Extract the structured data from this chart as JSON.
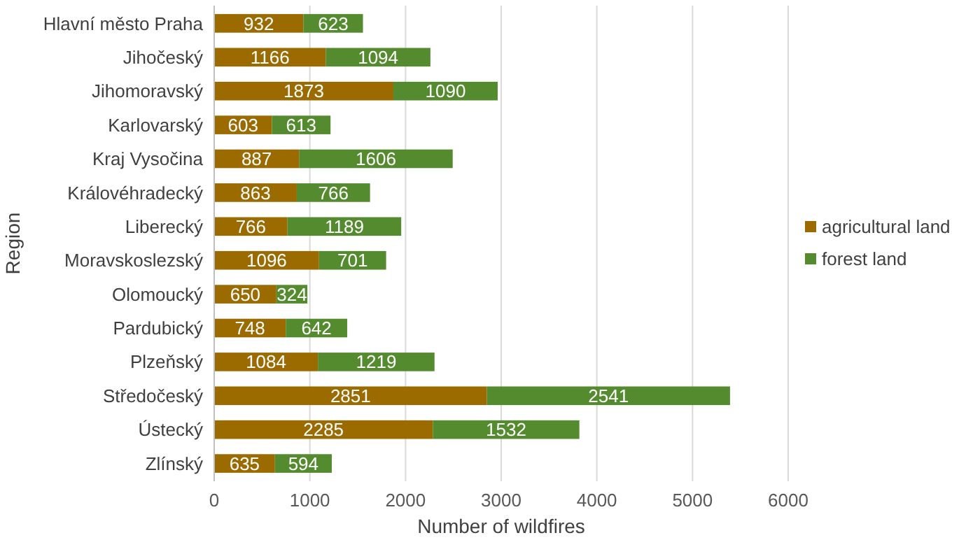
{
  "chart_data": {
    "type": "bar",
    "orientation": "horizontal",
    "stacked": true,
    "xlabel": "Number of wildfires",
    "ylabel": "Region",
    "categories": [
      "Hlavní město Praha",
      "Jihočeský",
      "Jihomoravský",
      "Karlovarský",
      "Kraj Vysočina",
      "Královéhradecký",
      "Liberecký",
      "Moravskoslezský",
      "Olomoucký",
      "Pardubický",
      "Plzeňský",
      "Středočeský",
      "Ústecký",
      "Zlínský"
    ],
    "series": [
      {
        "name": "agricultural land",
        "color": "#9c6b00",
        "values": [
          932,
          1166,
          1873,
          603,
          887,
          863,
          766,
          1096,
          650,
          748,
          1084,
          2851,
          2285,
          635
        ]
      },
      {
        "name": "forest land",
        "color": "#548b2e",
        "values": [
          623,
          1094,
          1090,
          613,
          1606,
          766,
          1189,
          701,
          324,
          642,
          1219,
          2541,
          1532,
          594
        ]
      }
    ],
    "xlim": [
      0,
      6000
    ],
    "xticks": [
      0,
      1000,
      2000,
      3000,
      4000,
      5000,
      6000
    ],
    "grid": "x",
    "legend": "right",
    "data_labels": true
  }
}
